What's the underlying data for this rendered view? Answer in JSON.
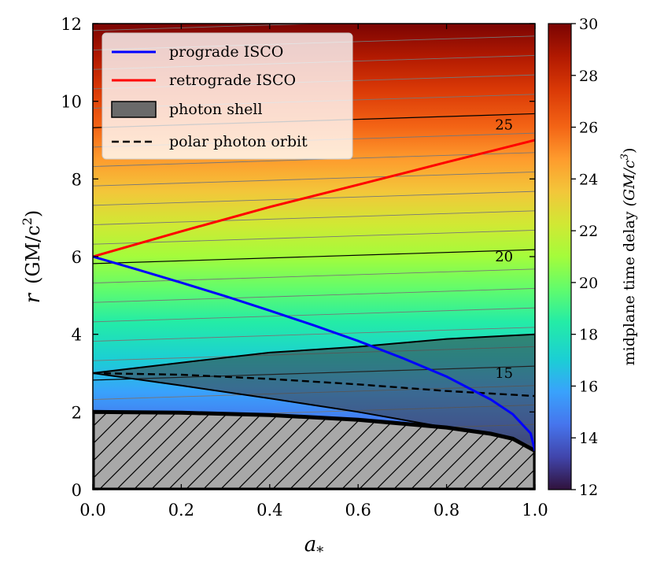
{
  "chart_data": {
    "type": "heatmap",
    "xlabel": "a_*",
    "xlabel_main": "a",
    "xlabel_sub": "*",
    "ylabel": "r  (GM/c^2)",
    "ylabel_parts": [
      "r",
      "(GM/c",
      "2",
      ")"
    ],
    "xlim": [
      0.0,
      1.0
    ],
    "ylim": [
      0,
      12
    ],
    "xticks": [
      "0.0",
      "0.2",
      "0.4",
      "0.6",
      "0.8",
      "1.0"
    ],
    "yticks": [
      "0",
      "2",
      "4",
      "6",
      "8",
      "10",
      "12"
    ],
    "colorbar": {
      "label": "midplane time delay (GM/c^3)",
      "label_parts": [
        "midplane time delay ",
        "(GM/c",
        "3",
        ")"
      ],
      "range": [
        12,
        30
      ],
      "ticks": [
        "12",
        "14",
        "16",
        "18",
        "20",
        "22",
        "24",
        "26",
        "28",
        "30"
      ],
      "colormap": "turbo"
    },
    "contour_labels": [
      {
        "text": "15",
        "x": 0.93,
        "r": 3.0
      },
      {
        "text": "20",
        "x": 0.93,
        "r": 6.0
      },
      {
        "text": "25",
        "x": 0.93,
        "r": 9.4
      }
    ],
    "legend": {
      "position": "top-left",
      "entries": [
        {
          "label": "prograde ISCO",
          "color": "#0000ff",
          "style": "solid-line"
        },
        {
          "label": "retrograde ISCO",
          "color": "#ff0000",
          "style": "solid-line"
        },
        {
          "label": "photon shell",
          "color": "#555555",
          "style": "filled-patch"
        },
        {
          "label": "polar photon orbit",
          "color": "#000000",
          "style": "dashed-line"
        }
      ]
    },
    "series": [
      {
        "name": "prograde ISCO",
        "x": [
          0.0,
          0.1,
          0.2,
          0.3,
          0.4,
          0.5,
          0.6,
          0.7,
          0.8,
          0.9,
          0.95,
          0.99,
          1.0
        ],
        "y": [
          6.0,
          5.67,
          5.33,
          4.98,
          4.61,
          4.23,
          3.83,
          3.39,
          2.91,
          2.32,
          1.94,
          1.45,
          1.0
        ]
      },
      {
        "name": "retrograde ISCO",
        "x": [
          0.0,
          0.2,
          0.4,
          0.6,
          0.8,
          1.0
        ],
        "y": [
          6.0,
          6.65,
          7.28,
          7.85,
          8.43,
          9.0
        ]
      },
      {
        "name": "polar photon orbit",
        "x": [
          0.0,
          0.2,
          0.4,
          0.6,
          0.8,
          1.0
        ],
        "y": [
          3.0,
          2.96,
          2.85,
          2.71,
          2.54,
          2.41
        ]
      }
    ],
    "photon_shell": {
      "x": [
        0.0,
        0.2,
        0.4,
        0.6,
        0.8,
        0.9,
        1.0
      ],
      "r_outer": [
        3.0,
        3.27,
        3.53,
        3.68,
        3.88,
        3.94,
        4.0
      ],
      "r_inner": [
        3.0,
        2.68,
        2.35,
        2.0,
        1.6,
        1.36,
        1.0
      ]
    },
    "horizon": {
      "x": [
        0.0,
        0.2,
        0.4,
        0.6,
        0.8,
        0.9,
        0.95,
        1.0
      ],
      "r": [
        2.0,
        1.98,
        1.92,
        1.8,
        1.6,
        1.44,
        1.31,
        1.0
      ]
    }
  }
}
